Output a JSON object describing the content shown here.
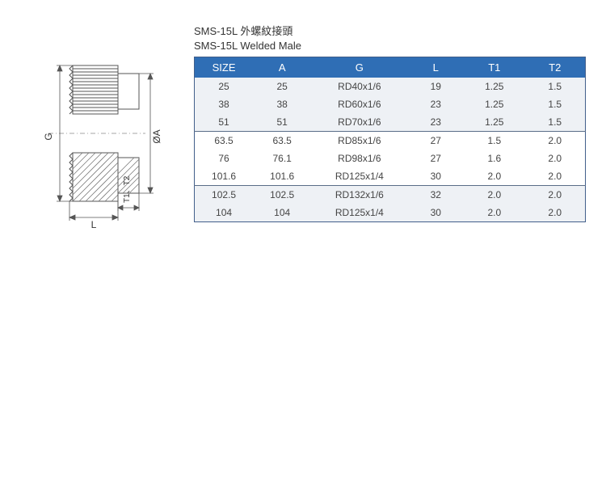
{
  "title": {
    "line1": "SMS-15L 外螺紋接頭",
    "line2": "SMS-15L Welded Male"
  },
  "diagram": {
    "labels": {
      "G": "G",
      "OA": "ØA",
      "L": "L",
      "T1T2": "T1、T2"
    },
    "stroke": "#555555",
    "hatch": "#7a7a7a",
    "thin": "#777777"
  },
  "table": {
    "header_bg": "#2f6eb5",
    "header_fg": "#ffffff",
    "border": "#425f8b",
    "group_sep": "#5a6d88",
    "row_bg_alt0": "#eef1f5",
    "row_bg_alt1": "#ffffff",
    "columns": [
      "SIZE",
      "A",
      "G",
      "L",
      "T1",
      "T2"
    ],
    "groups": [
      {
        "rows": [
          [
            "25",
            "25",
            "RD40x1/6",
            "19",
            "1.25",
            "1.5"
          ],
          [
            "38",
            "38",
            "RD60x1/6",
            "23",
            "1.25",
            "1.5"
          ],
          [
            "51",
            "51",
            "RD70x1/6",
            "23",
            "1.25",
            "1.5"
          ]
        ]
      },
      {
        "rows": [
          [
            "63.5",
            "63.5",
            "RD85x1/6",
            "27",
            "1.5",
            "2.0"
          ],
          [
            "76",
            "76.1",
            "RD98x1/6",
            "27",
            "1.6",
            "2.0"
          ],
          [
            "101.6",
            "101.6",
            "RD125x1/4",
            "30",
            "2.0",
            "2.0"
          ]
        ]
      },
      {
        "rows": [
          [
            "102.5",
            "102.5",
            "RD132x1/6",
            "32",
            "2.0",
            "2.0"
          ],
          [
            "104",
            "104",
            "RD125x1/4",
            "30",
            "2.0",
            "2.0"
          ]
        ]
      }
    ]
  }
}
